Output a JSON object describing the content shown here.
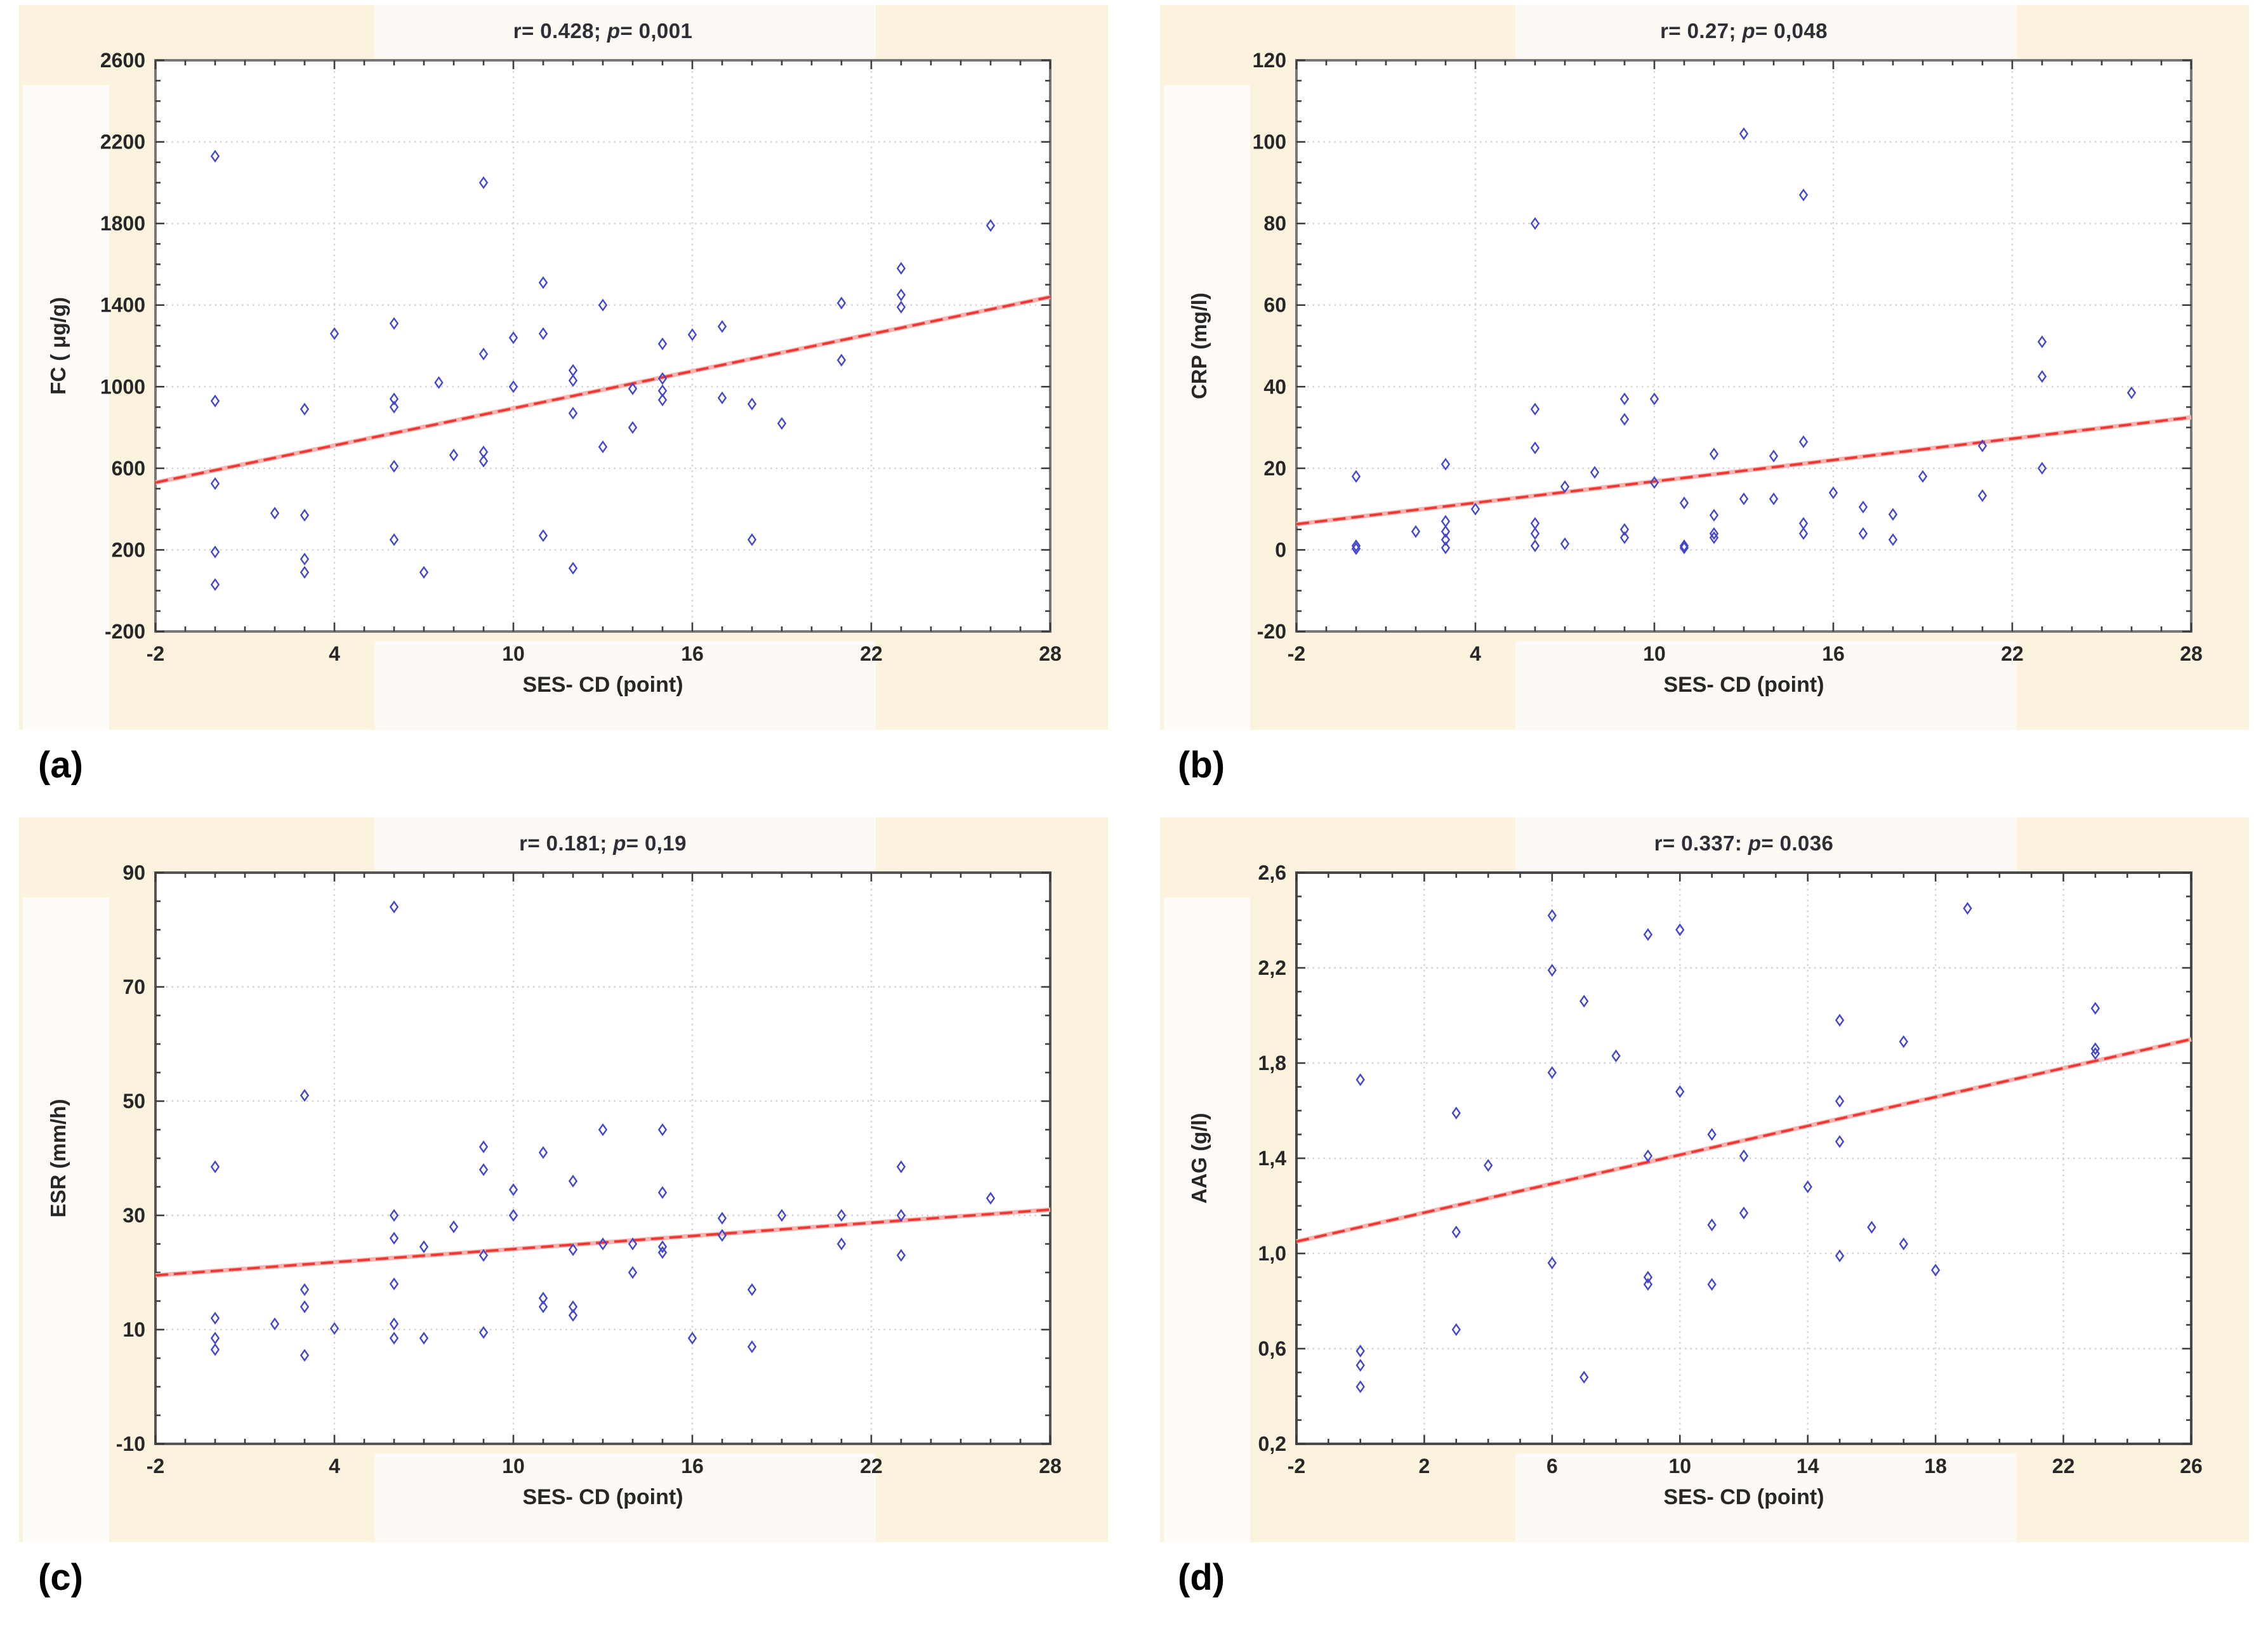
{
  "figure": {
    "captions": {
      "a": "(a)",
      "b": "(b)",
      "c": "(c)",
      "d": "(d)"
    },
    "colors": {
      "marker_blue": "#4447cb",
      "trend_red": "#ee3632",
      "trend_pink": "#f9b4b1",
      "panel_cream": "#fcf3df",
      "band_white": "#fdf9f4",
      "grid_gray": "#d2d2d2",
      "tick_dark": "#3d3d3d",
      "text_dark": "#272727"
    }
  },
  "chart_data": [
    {
      "id": "a",
      "type": "scatter",
      "title_r": "r= 0.428; ",
      "title_p": "p",
      "title_rest": "= 0,001",
      "xlabel": "SES- CD (point)",
      "ylabel": "FC ( μg/g)",
      "xlim": [
        -2,
        28
      ],
      "ylim": [
        -200,
        2600
      ],
      "x_ticks": [
        -2,
        4,
        10,
        16,
        22,
        28
      ],
      "x_tick_labels": [
        "-2",
        "4",
        "10",
        "16",
        "22",
        "28"
      ],
      "y_ticks": [
        -200,
        200,
        600,
        1000,
        1400,
        1800,
        2200,
        2600
      ],
      "y_tick_labels": [
        "-200",
        "200",
        "600",
        "1000",
        "1400",
        "1800",
        "2200",
        "2600"
      ],
      "x_minor_step": 1,
      "y_minor_step": 100,
      "grid": true,
      "legend": null,
      "trend": {
        "x": [
          -2,
          28
        ],
        "y": [
          530,
          1440
        ]
      },
      "points": [
        [
          0,
          2130
        ],
        [
          9,
          2000
        ],
        [
          26,
          1790
        ],
        [
          23,
          1580
        ],
        [
          23,
          1450
        ],
        [
          23,
          1390
        ],
        [
          11,
          1510
        ],
        [
          21,
          1410
        ],
        [
          13,
          1400
        ],
        [
          6,
          1310
        ],
        [
          4,
          1260
        ],
        [
          11,
          1260
        ],
        [
          16,
          1255
        ],
        [
          10,
          1240
        ],
        [
          17,
          1295
        ],
        [
          15,
          1210
        ],
        [
          9,
          1160
        ],
        [
          21,
          1130
        ],
        [
          12,
          1080
        ],
        [
          12,
          1030
        ],
        [
          7.5,
          1020
        ],
        [
          15,
          1040
        ],
        [
          10,
          1000
        ],
        [
          14,
          990
        ],
        [
          15,
          980
        ],
        [
          17,
          945
        ],
        [
          6,
          940
        ],
        [
          15,
          935
        ],
        [
          0,
          930
        ],
        [
          18,
          915
        ],
        [
          6,
          900
        ],
        [
          3,
          890
        ],
        [
          12,
          870
        ],
        [
          19,
          820
        ],
        [
          14,
          800
        ],
        [
          13,
          705
        ],
        [
          9,
          680
        ],
        [
          8,
          665
        ],
        [
          9,
          635
        ],
        [
          6,
          610
        ],
        [
          0,
          525
        ],
        [
          2,
          380
        ],
        [
          3,
          370
        ],
        [
          11,
          270
        ],
        [
          6,
          250
        ],
        [
          18,
          250
        ],
        [
          0,
          190
        ],
        [
          3,
          155
        ],
        [
          12,
          110
        ],
        [
          3,
          90
        ],
        [
          7,
          90
        ],
        [
          0,
          30
        ]
      ]
    },
    {
      "id": "b",
      "type": "scatter",
      "title_r": "r= 0.27; ",
      "title_p": "p",
      "title_rest": "= 0,048",
      "xlabel": "SES- CD (point)",
      "ylabel": "CRP (mg/l)",
      "xlim": [
        -2,
        28
      ],
      "ylim": [
        -20,
        120
      ],
      "x_ticks": [
        -2,
        4,
        10,
        16,
        22,
        28
      ],
      "x_tick_labels": [
        "-2",
        "4",
        "10",
        "16",
        "22",
        "28"
      ],
      "y_ticks": [
        -20,
        0,
        20,
        40,
        60,
        80,
        100,
        120
      ],
      "y_tick_labels": [
        "-20",
        "0",
        "20",
        "40",
        "60",
        "80",
        "100",
        "120"
      ],
      "x_minor_step": 1,
      "y_minor_step": 5,
      "grid": true,
      "legend": null,
      "trend": {
        "x": [
          -2,
          28
        ],
        "y": [
          6.3,
          32.5
        ]
      },
      "points": [
        [
          13,
          102
        ],
        [
          15,
          87
        ],
        [
          6,
          80
        ],
        [
          23,
          51
        ],
        [
          23,
          42.5
        ],
        [
          26,
          38.5
        ],
        [
          9,
          37
        ],
        [
          10,
          37
        ],
        [
          6,
          34.5
        ],
        [
          9,
          32
        ],
        [
          15,
          26.5
        ],
        [
          21,
          25.5
        ],
        [
          6,
          25
        ],
        [
          12,
          23.5
        ],
        [
          14,
          23
        ],
        [
          3,
          21
        ],
        [
          23,
          20
        ],
        [
          8,
          19
        ],
        [
          19,
          18
        ],
        [
          0,
          18
        ],
        [
          10,
          16.5
        ],
        [
          7,
          15.5
        ],
        [
          16,
          14
        ],
        [
          21,
          13.3
        ],
        [
          13,
          12.5
        ],
        [
          14,
          12.5
        ],
        [
          11,
          11.5
        ],
        [
          17,
          10.5
        ],
        [
          4,
          10
        ],
        [
          18,
          8.7
        ],
        [
          12,
          8.5
        ],
        [
          3,
          7
        ],
        [
          15,
          6.5
        ],
        [
          6,
          6.5
        ],
        [
          9,
          5
        ],
        [
          2,
          4.5
        ],
        [
          3,
          4.5
        ],
        [
          12,
          4
        ],
        [
          15,
          4
        ],
        [
          6,
          4
        ],
        [
          17,
          4
        ],
        [
          9,
          3
        ],
        [
          12,
          3
        ],
        [
          3,
          2.5
        ],
        [
          18,
          2.5
        ],
        [
          7,
          1.5
        ],
        [
          6,
          1
        ],
        [
          11,
          1
        ],
        [
          0,
          1
        ],
        [
          3,
          0.5
        ],
        [
          11,
          0.5
        ],
        [
          0,
          0.3
        ]
      ]
    },
    {
      "id": "c",
      "type": "scatter",
      "title_r": "r= 0.181; ",
      "title_p": "p",
      "title_rest": "= 0,19",
      "xlabel": "SES- CD (point)",
      "ylabel": "ESR (mm/h)",
      "xlim": [
        -2,
        28
      ],
      "ylim": [
        -10,
        90
      ],
      "x_ticks": [
        -2,
        4,
        10,
        16,
        22,
        28
      ],
      "x_tick_labels": [
        "-2",
        "4",
        "10",
        "16",
        "22",
        "28"
      ],
      "y_ticks": [
        -10,
        10,
        30,
        50,
        70,
        90
      ],
      "y_tick_labels": [
        "-10",
        "10",
        "30",
        "50",
        "70",
        "90"
      ],
      "x_minor_step": 1,
      "y_minor_step": 5,
      "grid": true,
      "legend": null,
      "trend": {
        "x": [
          -2,
          28
        ],
        "y": [
          19.5,
          31
        ]
      },
      "points": [
        [
          6,
          84
        ],
        [
          3,
          51
        ],
        [
          13,
          45
        ],
        [
          15,
          45
        ],
        [
          9,
          42
        ],
        [
          11,
          41
        ],
        [
          23,
          38.5
        ],
        [
          0,
          38.5
        ],
        [
          9,
          38
        ],
        [
          12,
          36
        ],
        [
          10,
          34.5
        ],
        [
          15,
          34
        ],
        [
          26,
          33
        ],
        [
          6,
          30
        ],
        [
          10,
          30
        ],
        [
          19,
          30
        ],
        [
          21,
          30
        ],
        [
          23,
          30
        ],
        [
          17,
          29.5
        ],
        [
          8,
          28
        ],
        [
          17,
          26.5
        ],
        [
          6,
          26
        ],
        [
          13,
          25
        ],
        [
          14,
          25
        ],
        [
          21,
          25
        ],
        [
          7,
          24.5
        ],
        [
          15,
          24.5
        ],
        [
          12,
          24
        ],
        [
          15,
          23.5
        ],
        [
          9,
          23
        ],
        [
          23,
          23
        ],
        [
          14,
          20
        ],
        [
          6,
          18
        ],
        [
          3,
          17
        ],
        [
          18,
          17
        ],
        [
          11,
          15.5
        ],
        [
          3,
          14
        ],
        [
          11,
          14
        ],
        [
          12,
          14
        ],
        [
          12,
          12.5
        ],
        [
          0,
          12
        ],
        [
          2,
          11
        ],
        [
          6,
          11
        ],
        [
          4,
          10.2
        ],
        [
          9,
          9.5
        ],
        [
          0,
          8.5
        ],
        [
          6,
          8.5
        ],
        [
          7,
          8.5
        ],
        [
          16,
          8.5
        ],
        [
          18,
          7
        ],
        [
          0,
          6.5
        ],
        [
          3,
          5.5
        ]
      ]
    },
    {
      "id": "d",
      "type": "scatter",
      "title_r": "r= 0.337: ",
      "title_p": "p",
      "title_rest": "= 0.036",
      "xlabel": "SES- CD (point)",
      "ylabel": "AAG (g/l)",
      "xlim": [
        -2,
        26
      ],
      "ylim": [
        0.2,
        2.6
      ],
      "x_ticks": [
        -2,
        2,
        6,
        10,
        14,
        18,
        22,
        26
      ],
      "x_tick_labels": [
        "-2",
        "2",
        "6",
        "10",
        "14",
        "18",
        "22",
        "26"
      ],
      "y_ticks": [
        0.2,
        0.6,
        1.0,
        1.4,
        1.8,
        2.2,
        2.6
      ],
      "y_tick_labels": [
        "0,2",
        "0,6",
        "1,0",
        "1,4",
        "1,8",
        "2,2",
        "2,6"
      ],
      "x_minor_step": 1,
      "y_minor_step": 0.1,
      "grid": true,
      "legend": null,
      "trend": {
        "x": [
          -2,
          26
        ],
        "y": [
          1.05,
          1.9
        ]
      },
      "points": [
        [
          0,
          1.73
        ],
        [
          0,
          0.59
        ],
        [
          0,
          0.53
        ],
        [
          0,
          0.44
        ],
        [
          3,
          1.59
        ],
        [
          3,
          1.09
        ],
        [
          3,
          0.68
        ],
        [
          4,
          1.37
        ],
        [
          6,
          2.42
        ],
        [
          6,
          2.19
        ],
        [
          6,
          1.76
        ],
        [
          6,
          0.96
        ],
        [
          7,
          2.06
        ],
        [
          7,
          0.48
        ],
        [
          8,
          1.83
        ],
        [
          9,
          2.34
        ],
        [
          9,
          1.41
        ],
        [
          9,
          0.9
        ],
        [
          9,
          0.87
        ],
        [
          10,
          2.36
        ],
        [
          10,
          1.68
        ],
        [
          11,
          1.5
        ],
        [
          11,
          1.12
        ],
        [
          11,
          0.87
        ],
        [
          12,
          1.41
        ],
        [
          12,
          1.17
        ],
        [
          14,
          1.28
        ],
        [
          15,
          1.98
        ],
        [
          15,
          1.64
        ],
        [
          15,
          1.47
        ],
        [
          15,
          0.99
        ],
        [
          16,
          1.11
        ],
        [
          17,
          1.89
        ],
        [
          17,
          1.04
        ],
        [
          18,
          0.93
        ],
        [
          19,
          2.45
        ],
        [
          23,
          2.03
        ],
        [
          23,
          1.86
        ],
        [
          23,
          1.84
        ]
      ]
    }
  ]
}
